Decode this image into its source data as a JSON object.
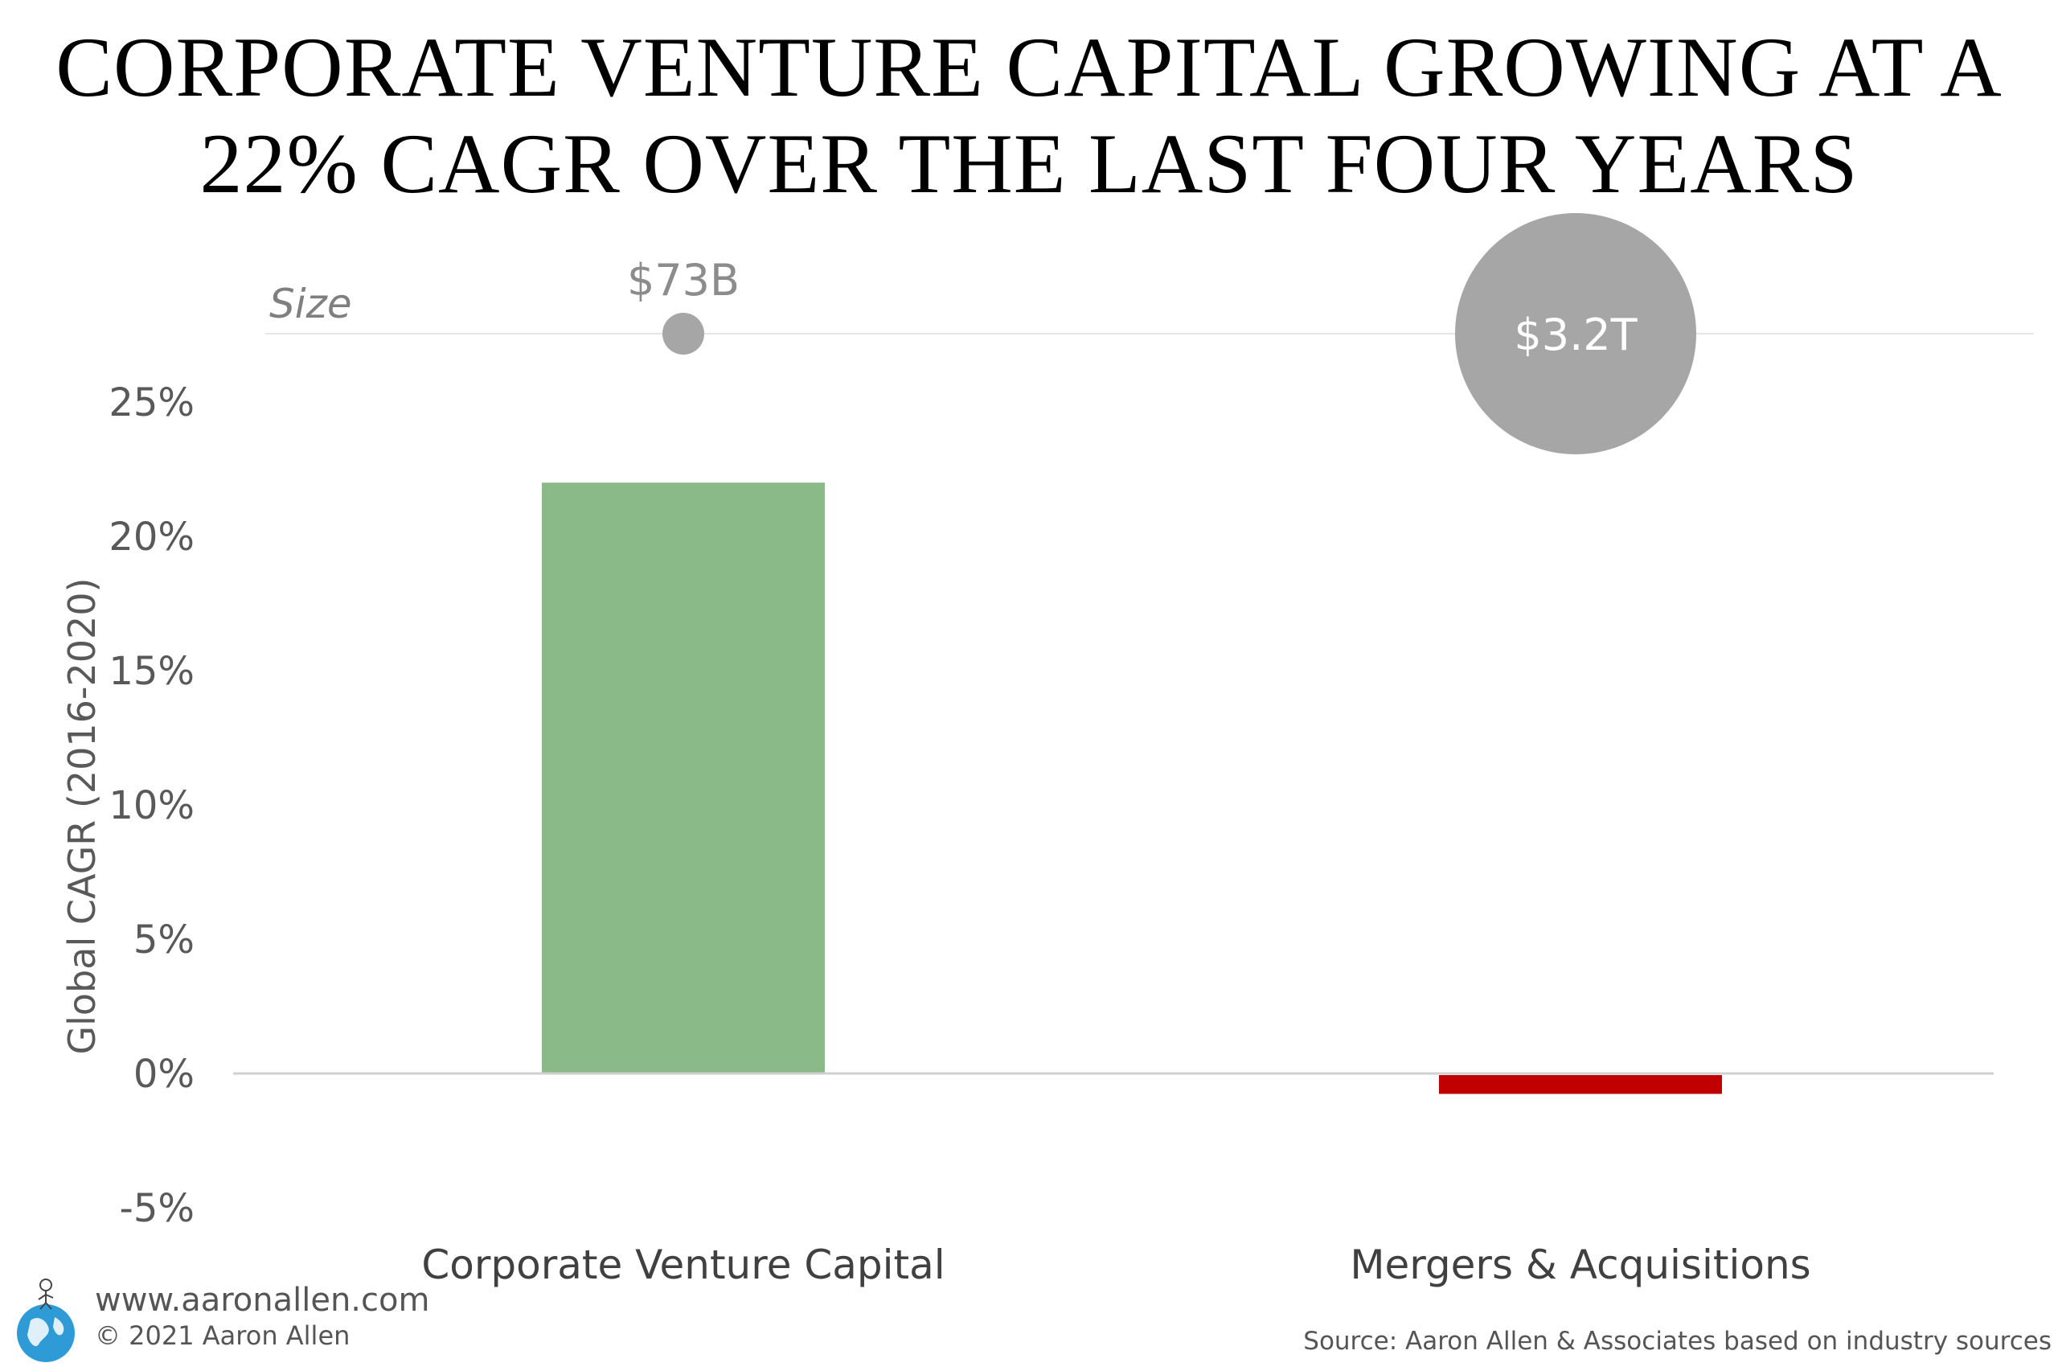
{
  "title_lines": [
    "CORPORATE VENTURE CAPITAL GROWING AT A",
    "22% CAGR OVER THE LAST FOUR YEARS"
  ],
  "footer": {
    "url": "www.aaronallen.com",
    "copyright": "© 2021 Aaron Allen",
    "source": "Source: Aaron Allen & Associates based on industry sources"
  },
  "colors": {
    "positive_bar": "#8aba88",
    "negative_bar": "#c00000",
    "bubble": "#a6a6a6",
    "axis_text": "#595959",
    "zero_line": "#d0d0d0"
  },
  "chart_data": {
    "type": "bar",
    "title": "CORPORATE VENTURE CAPITAL GROWING AT A 22% CAGR OVER THE LAST FOUR YEARS",
    "categories": [
      "Corporate Venture Capital",
      "Mergers & Acquisitions"
    ],
    "values": [
      22,
      -0.7
    ],
    "ylabel": "Global CAGR (2016-2020)",
    "ylim": [
      -5,
      25
    ],
    "yticks": [
      25,
      20,
      15,
      10,
      5,
      0,
      -5
    ],
    "ytick_labels": [
      "25%",
      "20%",
      "15%",
      "10%",
      "5%",
      "0%",
      "-5%"
    ],
    "grid": false,
    "size_row": {
      "label": "Size",
      "values_billion": [
        73,
        3200
      ],
      "labels": [
        "$73B",
        "$3.2T"
      ]
    }
  }
}
